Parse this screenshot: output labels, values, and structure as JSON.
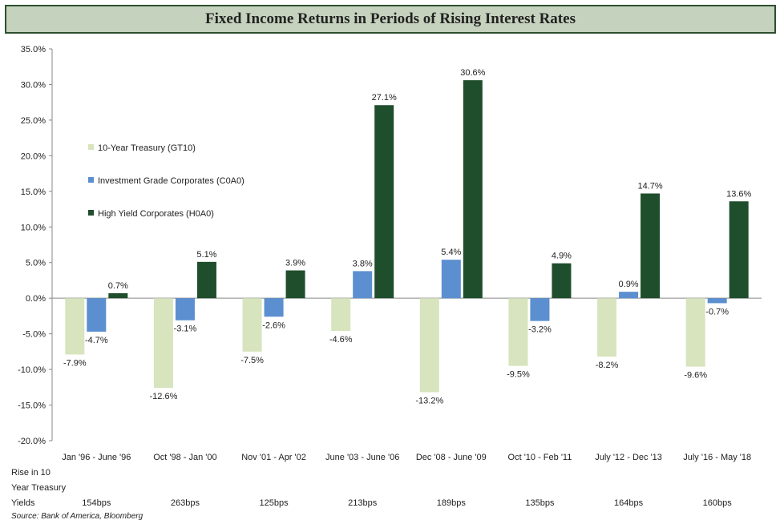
{
  "title": "Fixed Income Returns in Periods of Rising Interest Rates",
  "source": "Source: Bank of America, Bloomberg",
  "rise_label": [
    "Rise in 10",
    "Year Treasury",
    "Yields"
  ],
  "chart_data": {
    "type": "bar",
    "title": "Fixed Income Returns in Periods of Rising Interest Rates",
    "categories": [
      "Jan '96 - June '96",
      "Oct '98 - Jan '00",
      "Nov '01 - Apr '02",
      "June '03 - June '06",
      "Dec '08 - June '09",
      "Oct '10 - Feb '11",
      "July '12 - Dec '13",
      "July '16 - May '18"
    ],
    "series": [
      {
        "name": "10-Year Treasury (GT10)",
        "color": "#d7e4bd",
        "values": [
          -7.9,
          -12.6,
          -7.5,
          -4.6,
          -13.2,
          -9.5,
          -8.2,
          -9.6
        ],
        "labels": [
          "-7.9%",
          "-12.6%",
          "-7.5%",
          "-4.6%",
          "-13.2%",
          "-9.5%",
          "-8.2%",
          "-9.6%"
        ]
      },
      {
        "name": "Investment Grade Corporates (C0A0)",
        "color": "#5b8fd0",
        "values": [
          -4.7,
          -3.1,
          -2.6,
          3.8,
          5.4,
          -3.2,
          0.9,
          -0.7
        ],
        "labels": [
          "-4.7%",
          "-3.1%",
          "-2.6%",
          "3.8%",
          "5.4%",
          "-3.2%",
          "0.9%",
          "-0.7%"
        ]
      },
      {
        "name": "High Yield Corporates (H0A0)",
        "color": "#1f4e2c",
        "values": [
          0.7,
          5.1,
          3.9,
          27.1,
          30.6,
          4.9,
          14.7,
          13.6
        ],
        "labels": [
          "0.7%",
          "5.1%",
          "3.9%",
          "27.1%",
          "30.6%",
          "4.9%",
          "14.7%",
          "13.6%"
        ]
      }
    ],
    "yticks": [
      "35.0%",
      "30.0%",
      "25.0%",
      "20.0%",
      "15.0%",
      "10.0%",
      "5.0%",
      "0.0%",
      "-5.0%",
      "-10.0%",
      "-15.0%",
      "-20.0%"
    ],
    "ylim": [
      -20,
      35
    ],
    "legend_position": "left",
    "grid": false,
    "rise_in_yields": [
      "154bps",
      "263bps",
      "125bps",
      "213bps",
      "189bps",
      "135bps",
      "164bps",
      "160bps"
    ]
  }
}
